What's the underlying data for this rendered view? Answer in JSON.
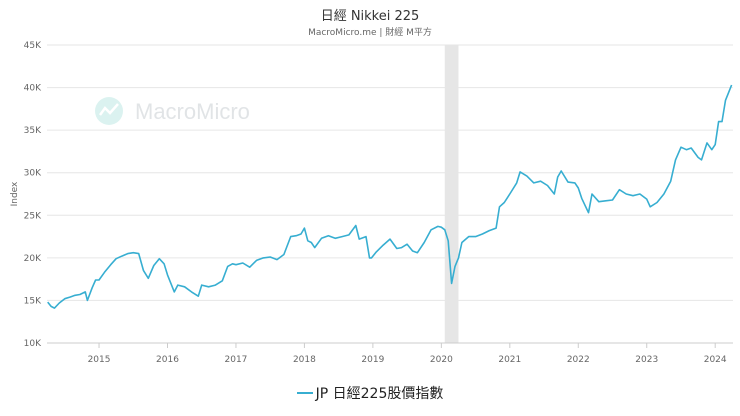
{
  "chart_data": {
    "type": "line",
    "title": "日經 Nikkei 225",
    "subtitle": "MacroMicro.me | 財經 M平方",
    "watermark": "MacroMicro",
    "ylabel": "Index",
    "xlabel": "",
    "ylim": [
      10000,
      45000
    ],
    "xlim": [
      2014.24,
      2024.26
    ],
    "y_ticks": [
      "10K",
      "15K",
      "20K",
      "25K",
      "30K",
      "35K",
      "40K",
      "45K"
    ],
    "y_tick_values": [
      10000,
      15000,
      20000,
      25000,
      30000,
      35000,
      40000,
      45000
    ],
    "x_ticks": [
      "2015",
      "2016",
      "2017",
      "2018",
      "2019",
      "2020",
      "2021",
      "2022",
      "2023",
      "2024"
    ],
    "x_tick_values": [
      2015,
      2016,
      2017,
      2018,
      2019,
      2020,
      2021,
      2022,
      2023,
      2024
    ],
    "shaded_region": [
      2020.05,
      2020.25
    ],
    "color": "#37aed1",
    "grid": true,
    "legend_position": "bottom",
    "series": [
      {
        "name": "JP 日經225股價指數",
        "x": [
          2014.25,
          2014.3,
          2014.35,
          2014.42,
          2014.5,
          2014.58,
          2014.65,
          2014.72,
          2014.8,
          2014.83,
          2014.9,
          2014.95,
          2015.0,
          2015.08,
          2015.17,
          2015.25,
          2015.33,
          2015.42,
          2015.5,
          2015.58,
          2015.65,
          2015.72,
          2015.8,
          2015.88,
          2015.95,
          2016.0,
          2016.05,
          2016.1,
          2016.15,
          2016.25,
          2016.35,
          2016.45,
          2016.5,
          2016.6,
          2016.7,
          2016.8,
          2016.88,
          2016.95,
          2017.0,
          2017.1,
          2017.2,
          2017.3,
          2017.4,
          2017.5,
          2017.6,
          2017.7,
          2017.8,
          2017.88,
          2017.95,
          2018.0,
          2018.05,
          2018.1,
          2018.15,
          2018.25,
          2018.35,
          2018.45,
          2018.55,
          2018.65,
          2018.75,
          2018.8,
          2018.9,
          2018.95,
          2018.98,
          2019.05,
          2019.15,
          2019.25,
          2019.35,
          2019.42,
          2019.5,
          2019.58,
          2019.65,
          2019.75,
          2019.85,
          2019.95,
          2020.0,
          2020.05,
          2020.1,
          2020.15,
          2020.2,
          2020.25,
          2020.3,
          2020.4,
          2020.5,
          2020.6,
          2020.7,
          2020.8,
          2020.85,
          2020.92,
          2021.0,
          2021.1,
          2021.15,
          2021.25,
          2021.35,
          2021.45,
          2021.55,
          2021.65,
          2021.7,
          2021.75,
          2021.85,
          2021.95,
          2022.0,
          2022.05,
          2022.15,
          2022.2,
          2022.3,
          2022.4,
          2022.5,
          2022.6,
          2022.7,
          2022.8,
          2022.9,
          2023.0,
          2023.05,
          2023.15,
          2023.25,
          2023.35,
          2023.42,
          2023.5,
          2023.58,
          2023.65,
          2023.75,
          2023.8,
          2023.88,
          2023.95,
          2024.0,
          2024.05,
          2024.1,
          2024.15,
          2024.2,
          2024.24
        ],
        "values": [
          14800,
          14300,
          14100,
          14700,
          15200,
          15400,
          15600,
          15700,
          16000,
          15000,
          16500,
          17400,
          17400,
          18300,
          19200,
          19900,
          20200,
          20500,
          20600,
          20500,
          18500,
          17600,
          19100,
          19900,
          19300,
          18000,
          17000,
          16000,
          16800,
          16600,
          16000,
          15500,
          16800,
          16600,
          16800,
          17300,
          19000,
          19300,
          19200,
          19400,
          18900,
          19700,
          20000,
          20100,
          19800,
          20400,
          22500,
          22600,
          22800,
          23500,
          22000,
          21800,
          21200,
          22300,
          22600,
          22300,
          22500,
          22700,
          23800,
          22200,
          22500,
          20000,
          20000,
          20700,
          21500,
          22200,
          21100,
          21200,
          21600,
          20800,
          20600,
          21800,
          23300,
          23700,
          23600,
          23300,
          22000,
          17000,
          19000,
          20000,
          21800,
          22500,
          22500,
          22800,
          23200,
          23500,
          26000,
          26500,
          27500,
          28800,
          30100,
          29600,
          28800,
          29000,
          28500,
          27500,
          29500,
          30200,
          28900,
          28800,
          28200,
          27000,
          25300,
          27500,
          26600,
          26700,
          26800,
          28000,
          27500,
          27300,
          27500,
          26900,
          26000,
          26500,
          27500,
          29000,
          31500,
          33000,
          32700,
          32900,
          31800,
          31500,
          33500,
          32700,
          33300,
          36000,
          36000,
          38500,
          39500,
          40300
        ]
      }
    ]
  }
}
